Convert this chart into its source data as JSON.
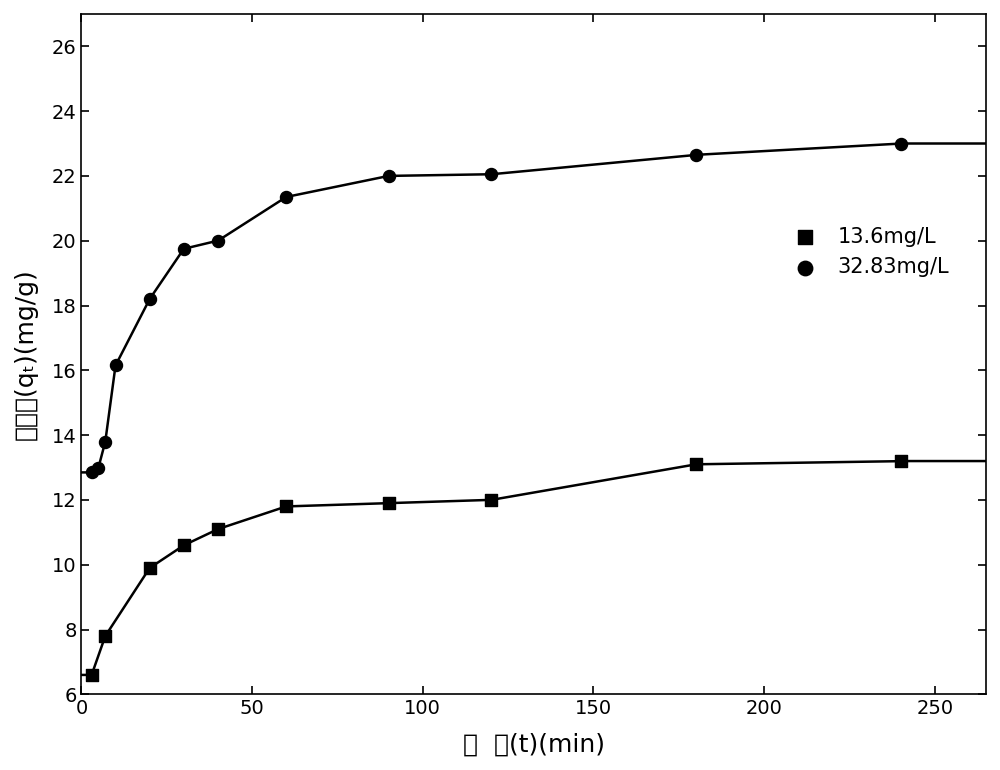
{
  "series1_label": "13.6mg/L",
  "series2_label": "32.83mg/L",
  "series1_x": [
    3,
    7,
    20,
    30,
    40,
    60,
    90,
    120,
    180,
    240
  ],
  "series1_y": [
    6.6,
    7.8,
    9.9,
    10.6,
    11.1,
    11.8,
    11.9,
    12.0,
    13.1,
    13.2
  ],
  "series2_x": [
    3,
    5,
    7,
    10,
    20,
    30,
    40,
    60,
    90,
    120,
    180,
    240
  ],
  "series2_y": [
    12.85,
    13.0,
    13.8,
    16.15,
    18.2,
    19.75,
    20.0,
    21.35,
    22.0,
    22.05,
    22.65,
    23.0
  ],
  "xlabel": "时  间(t)(min)",
  "ylabel": "吸附量(qₜ)(mg/g)",
  "xlim": [
    0,
    265
  ],
  "ylim": [
    6,
    27
  ],
  "yticks": [
    6,
    8,
    10,
    12,
    14,
    16,
    18,
    20,
    22,
    24,
    26
  ],
  "xticks": [
    0,
    50,
    100,
    150,
    200,
    250
  ],
  "background_color": "#ffffff",
  "line_color": "#000000",
  "marker_color": "#000000",
  "figsize": [
    10.0,
    7.7
  ],
  "dpi": 100
}
